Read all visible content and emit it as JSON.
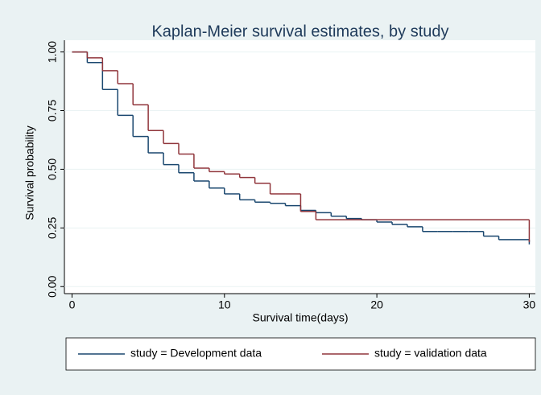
{
  "chart_data": {
    "type": "step",
    "title": "Kaplan-Meier survival estimates, by study",
    "x_label": "Survival time(days)",
    "y_label": "Survival probability",
    "xlim": [
      -0.5,
      30.4
    ],
    "xticks": [
      0,
      10,
      20,
      30
    ],
    "ylim": [
      -0.03,
      1.05
    ],
    "yticks": [
      {
        "value": 0,
        "label": "0.00"
      },
      {
        "value": 0.25,
        "label": "0.25"
      },
      {
        "value": 0.5,
        "label": "0.50"
      },
      {
        "value": 0.75,
        "label": "0.75"
      },
      {
        "value": 1,
        "label": "1.00"
      }
    ],
    "grid": true,
    "legend": "bottom",
    "series": [
      {
        "name": "study = Development data",
        "color": "#1a476f",
        "x": [
          0,
          1,
          2,
          3,
          4,
          5,
          6,
          7,
          8,
          9,
          10,
          11,
          12,
          13,
          14,
          15,
          16,
          17,
          18,
          19,
          20,
          21,
          22,
          23,
          24,
          25,
          26,
          27,
          28,
          29,
          30
        ],
        "values": [
          1,
          0.955,
          0.84,
          0.73,
          0.64,
          0.57,
          0.52,
          0.485,
          0.45,
          0.42,
          0.395,
          0.37,
          0.36,
          0.355,
          0.345,
          0.325,
          0.315,
          0.3,
          0.29,
          0.285,
          0.275,
          0.265,
          0.255,
          0.235,
          0.235,
          0.235,
          0.235,
          0.215,
          0.2,
          0.2,
          0.18
        ]
      },
      {
        "name": "study = validation data",
        "color": "#90353b",
        "x": [
          0,
          1,
          2,
          3,
          4,
          5,
          6,
          7,
          8,
          9,
          10,
          11,
          12,
          13,
          14,
          15,
          16,
          30
        ],
        "values": [
          1,
          0.975,
          0.92,
          0.865,
          0.775,
          0.665,
          0.61,
          0.565,
          0.505,
          0.49,
          0.48,
          0.465,
          0.44,
          0.395,
          0.395,
          0.32,
          0.285,
          0.19
        ]
      }
    ]
  }
}
